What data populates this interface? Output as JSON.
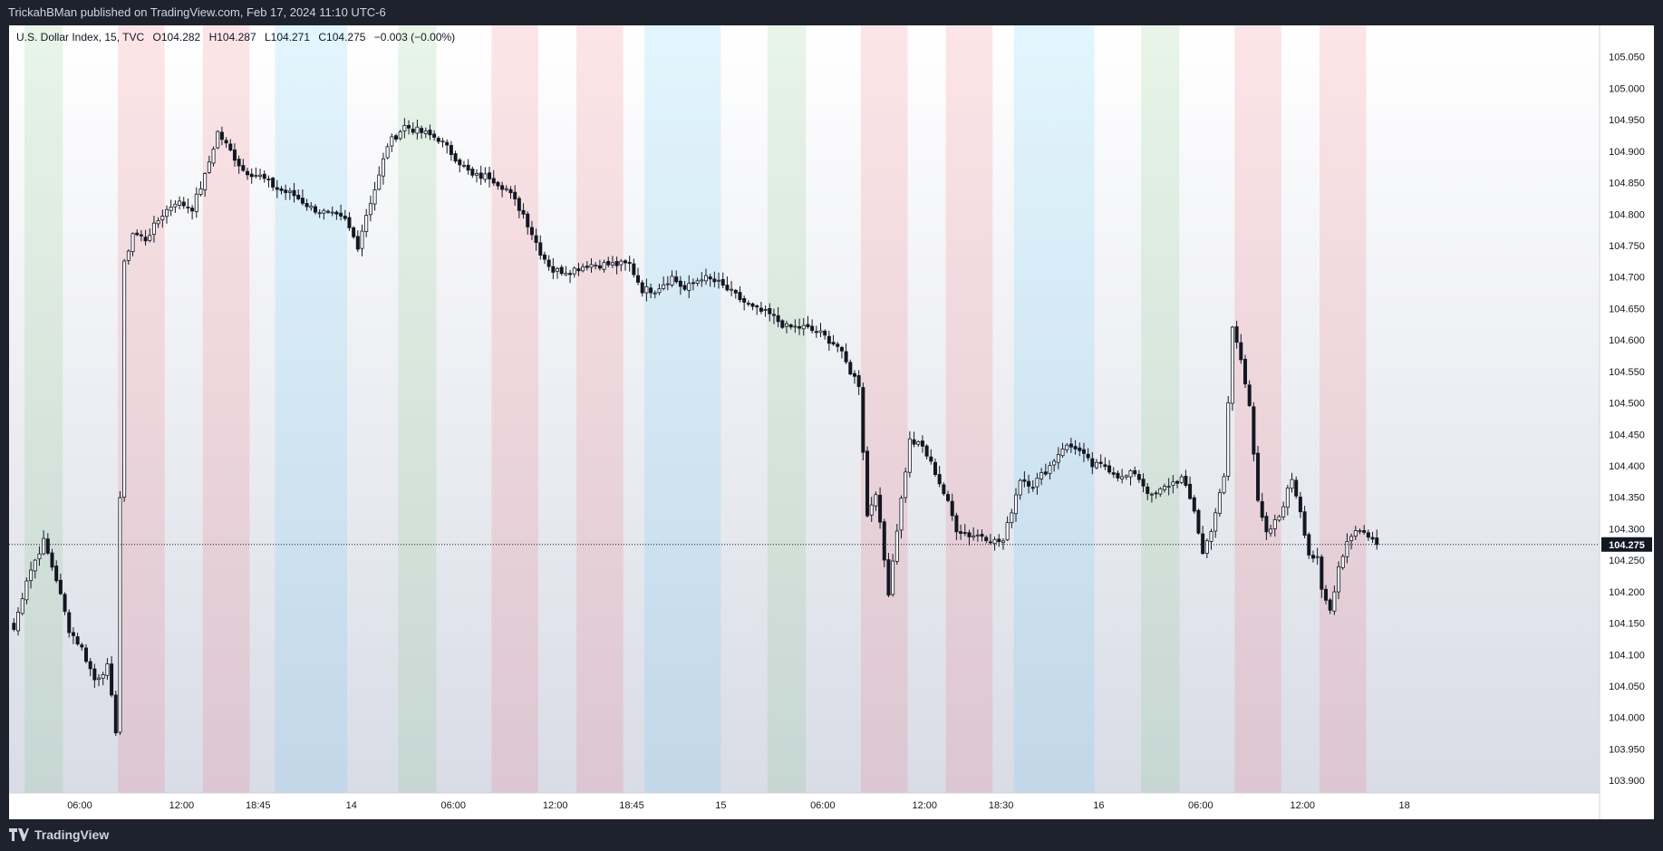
{
  "header": {
    "published": "TrickahBMan published on TradingView.com, Feb 17, 2024 11:10 UTC-6"
  },
  "legend": {
    "symbol": "U.S. Dollar Index, 15, TVC",
    "open": "O104.282",
    "high": "H104.287",
    "low": "L104.271",
    "close": "C104.275",
    "change": "−0.003 (−0.00%)"
  },
  "footer": {
    "brand": "TradingView"
  },
  "colors": {
    "up_body": "#ffffff",
    "down_body": "#131722",
    "wick": "#131722",
    "zone_green": "#4caf50",
    "zone_red": "#f23645",
    "zone_blue": "#29b6f6",
    "last_price_bg": "#131722",
    "last_price_text": "#ffffff"
  },
  "chart_data": {
    "type": "candlestick",
    "interval": "15",
    "ylim": [
      103.88,
      105.1
    ],
    "price_ticks": [
      "105.050",
      "105.000",
      "104.950",
      "104.900",
      "104.850",
      "104.800",
      "104.750",
      "104.700",
      "104.650",
      "104.600",
      "104.550",
      "104.500",
      "104.450",
      "104.400",
      "104.350",
      "104.300",
      "104.250",
      "104.200",
      "104.150",
      "104.100",
      "104.050",
      "104.000",
      "103.950",
      "103.900"
    ],
    "time_ticks": [
      {
        "label": "06:00",
        "i": 16
      },
      {
        "label": "12:00",
        "i": 40
      },
      {
        "label": "18:45",
        "i": 58
      },
      {
        "label": "14",
        "i": 80
      },
      {
        "label": "06:00",
        "i": 104
      },
      {
        "label": "12:00",
        "i": 128
      },
      {
        "label": "18:45",
        "i": 146
      },
      {
        "label": "15",
        "i": 167
      },
      {
        "label": "06:00",
        "i": 191
      },
      {
        "label": "12:00",
        "i": 215
      },
      {
        "label": "18:30",
        "i": 233
      },
      {
        "label": "16",
        "i": 256
      },
      {
        "label": "06:00",
        "i": 280
      },
      {
        "label": "12:00",
        "i": 304
      },
      {
        "label": "18",
        "i": 328
      }
    ],
    "last_price": "104.275",
    "last_price_value": 104.275,
    "session_zones": [
      {
        "from": 3,
        "to": 12,
        "color": "green"
      },
      {
        "from": 25,
        "to": 36,
        "color": "red"
      },
      {
        "from": 45,
        "to": 56,
        "color": "red"
      },
      {
        "from": 62,
        "to": 79,
        "color": "blue"
      },
      {
        "from": 91,
        "to": 100,
        "color": "green"
      },
      {
        "from": 113,
        "to": 124,
        "color": "red"
      },
      {
        "from": 133,
        "to": 144,
        "color": "red"
      },
      {
        "from": 149,
        "to": 167,
        "color": "blue"
      },
      {
        "from": 178,
        "to": 187,
        "color": "green"
      },
      {
        "from": 200,
        "to": 211,
        "color": "red"
      },
      {
        "from": 220,
        "to": 231,
        "color": "red"
      },
      {
        "from": 236,
        "to": 255,
        "color": "blue"
      },
      {
        "from": 266,
        "to": 275,
        "color": "green"
      },
      {
        "from": 288,
        "to": 299,
        "color": "red"
      },
      {
        "from": 308,
        "to": 319,
        "color": "red"
      }
    ],
    "close_anchors": [
      [
        0,
        104.14
      ],
      [
        3,
        104.22
      ],
      [
        7,
        104.28
      ],
      [
        10,
        104.22
      ],
      [
        13,
        104.14
      ],
      [
        16,
        104.11
      ],
      [
        19,
        104.06
      ],
      [
        22,
        104.08
      ],
      [
        24,
        103.98
      ],
      [
        26,
        104.72
      ],
      [
        28,
        104.77
      ],
      [
        31,
        104.76
      ],
      [
        35,
        104.8
      ],
      [
        38,
        104.82
      ],
      [
        42,
        104.81
      ],
      [
        45,
        104.86
      ],
      [
        48,
        104.93
      ],
      [
        51,
        104.9
      ],
      [
        54,
        104.87
      ],
      [
        58,
        104.86
      ],
      [
        62,
        104.84
      ],
      [
        66,
        104.83
      ],
      [
        70,
        104.81
      ],
      [
        74,
        104.8
      ],
      [
        78,
        104.79
      ],
      [
        81,
        104.75
      ],
      [
        83,
        104.8
      ],
      [
        86,
        104.86
      ],
      [
        88,
        104.91
      ],
      [
        92,
        104.94
      ],
      [
        96,
        104.93
      ],
      [
        100,
        104.92
      ],
      [
        104,
        104.89
      ],
      [
        108,
        104.86
      ],
      [
        112,
        104.86
      ],
      [
        116,
        104.84
      ],
      [
        120,
        104.8
      ],
      [
        124,
        104.74
      ],
      [
        127,
        104.71
      ],
      [
        131,
        104.71
      ],
      [
        135,
        104.72
      ],
      [
        140,
        104.72
      ],
      [
        145,
        104.72
      ],
      [
        148,
        104.68
      ],
      [
        151,
        104.68
      ],
      [
        155,
        104.7
      ],
      [
        158,
        104.68
      ],
      [
        162,
        104.7
      ],
      [
        166,
        104.69
      ],
      [
        170,
        104.67
      ],
      [
        174,
        104.65
      ],
      [
        178,
        104.64
      ],
      [
        182,
        104.62
      ],
      [
        186,
        104.62
      ],
      [
        190,
        104.61
      ],
      [
        194,
        104.59
      ],
      [
        197,
        104.55
      ],
      [
        199,
        104.53
      ],
      [
        201,
        104.32
      ],
      [
        203,
        104.36
      ],
      [
        205,
        104.25
      ],
      [
        206,
        104.2
      ],
      [
        208,
        104.3
      ],
      [
        211,
        104.44
      ],
      [
        214,
        104.43
      ],
      [
        217,
        104.39
      ],
      [
        220,
        104.34
      ],
      [
        222,
        104.3
      ],
      [
        225,
        104.29
      ],
      [
        228,
        104.29
      ],
      [
        231,
        104.28
      ],
      [
        233,
        104.28
      ],
      [
        237,
        104.38
      ],
      [
        240,
        104.37
      ],
      [
        244,
        104.4
      ],
      [
        247,
        104.43
      ],
      [
        250,
        104.43
      ],
      [
        254,
        104.4
      ],
      [
        257,
        104.4
      ],
      [
        261,
        104.38
      ],
      [
        264,
        104.39
      ],
      [
        268,
        104.35
      ],
      [
        272,
        104.37
      ],
      [
        275,
        104.38
      ],
      [
        278,
        104.33
      ],
      [
        280,
        104.26
      ],
      [
        282,
        104.3
      ],
      [
        285,
        104.38
      ],
      [
        287,
        104.62
      ],
      [
        289,
        104.57
      ],
      [
        291,
        104.5
      ],
      [
        293,
        104.34
      ],
      [
        295,
        104.29
      ],
      [
        298,
        104.32
      ],
      [
        301,
        104.38
      ],
      [
        303,
        104.33
      ],
      [
        305,
        104.26
      ],
      [
        307,
        104.25
      ],
      [
        308,
        104.2
      ],
      [
        310,
        104.17
      ],
      [
        312,
        104.24
      ],
      [
        314,
        104.28
      ],
      [
        316,
        104.3
      ],
      [
        319,
        104.29
      ],
      [
        321,
        104.275
      ]
    ]
  }
}
